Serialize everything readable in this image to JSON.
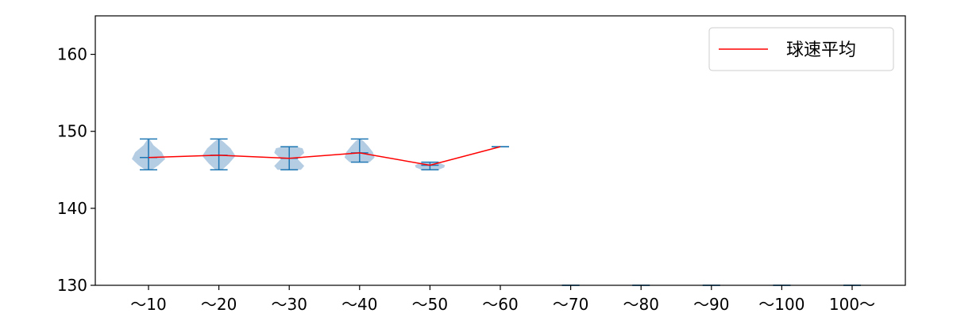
{
  "chart_data": {
    "type": "violin",
    "title": "",
    "xlabel": "",
    "ylabel": "",
    "categories": [
      "～10",
      "～20",
      "～30",
      "～40",
      "～50",
      "～60",
      "～70",
      "～80",
      "～90",
      "～100",
      "100～"
    ],
    "ylim": [
      130,
      165
    ],
    "yticks": [
      130,
      140,
      150,
      160
    ],
    "legend": {
      "position": "top-right",
      "entries": [
        "球速平均"
      ]
    },
    "grid": false,
    "series": [
      {
        "name": "球速平均",
        "kind": "line",
        "color": "#ff0000",
        "values": [
          146.6,
          146.9,
          146.5,
          147.2,
          145.6,
          148.0,
          null,
          null,
          null,
          null,
          null
        ]
      }
    ],
    "distributions": [
      {
        "category": "～10",
        "min": 145,
        "max": 149,
        "mean": 146.6,
        "profile": [
          [
            145,
            0.2
          ],
          [
            145.6,
            0.6
          ],
          [
            146.4,
            1.0
          ],
          [
            147.3,
            0.8
          ],
          [
            148.2,
            0.3
          ],
          [
            149,
            0.05
          ]
        ]
      },
      {
        "category": "～20",
        "min": 145,
        "max": 149,
        "mean": 146.9,
        "profile": [
          [
            145,
            0.2
          ],
          [
            145.8,
            0.6
          ],
          [
            146.8,
            1.0
          ],
          [
            147.8,
            0.7
          ],
          [
            148.6,
            0.3
          ],
          [
            149,
            0.05
          ]
        ]
      },
      {
        "category": "～30",
        "min": 145,
        "max": 148,
        "mean": 146.5,
        "profile": [
          [
            145,
            0.7
          ],
          [
            145.5,
            0.9
          ],
          [
            146.4,
            0.5
          ],
          [
            147.2,
            0.9
          ],
          [
            147.8,
            0.8
          ],
          [
            148,
            0.4
          ]
        ]
      },
      {
        "category": "～40",
        "min": 146,
        "max": 149,
        "mean": 147.2,
        "profile": [
          [
            146,
            0.6
          ],
          [
            146.6,
            0.9
          ],
          [
            147.3,
            0.8
          ],
          [
            148.1,
            0.5
          ],
          [
            148.7,
            0.25
          ],
          [
            149,
            0.05
          ]
        ]
      },
      {
        "category": "～50",
        "min": 145,
        "max": 146,
        "mean": 145.6,
        "profile": [
          [
            145,
            0.5
          ],
          [
            145.3,
            0.85
          ],
          [
            145.6,
            0.9
          ],
          [
            145.9,
            0.55
          ],
          [
            146,
            0.2
          ]
        ]
      },
      {
        "category": "～60",
        "min": 148,
        "max": 148,
        "mean": 148.0,
        "profile": []
      },
      {
        "category": "～70",
        "min": 130,
        "max": 130,
        "mean": null,
        "profile": []
      },
      {
        "category": "～80",
        "min": 130,
        "max": 130,
        "mean": null,
        "profile": []
      },
      {
        "category": "～90",
        "min": 130,
        "max": 130,
        "mean": null,
        "profile": []
      },
      {
        "category": "～100",
        "min": 130,
        "max": 130,
        "mean": null,
        "profile": []
      },
      {
        "category": "100～",
        "min": 130,
        "max": 130,
        "mean": null,
        "profile": []
      }
    ],
    "colors": {
      "violin_fill": "#b5cde3",
      "whisker": "#1f77b4",
      "mean_line": "#ff0000",
      "axes": "#000000"
    }
  }
}
